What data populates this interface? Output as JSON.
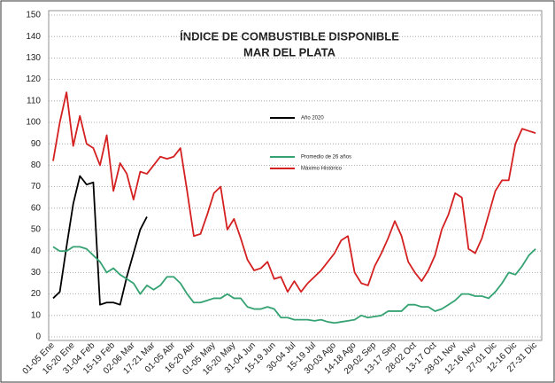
{
  "chart_data": {
    "type": "line",
    "title": "ÍNDICE DE COMBUSTIBLE DISPONIBLE",
    "subtitle": "MAR DEL PLATA",
    "categories": [
      "01-05 Ene",
      null,
      null,
      "16-20 Ene",
      null,
      null,
      "31-04 Feb",
      null,
      null,
      "15-19 Feb",
      null,
      null,
      "02-06 Mar",
      null,
      null,
      "17-21 Mar",
      null,
      null,
      "01-05 Abr",
      null,
      null,
      "16-20 Abr",
      null,
      null,
      "01-05 May",
      null,
      null,
      "16-20 May",
      null,
      null,
      "31-04 Jun",
      null,
      null,
      "15-19 Jun",
      null,
      null,
      "30-04 Jul",
      null,
      null,
      "15-19 Jul",
      null,
      null,
      "30-03 Ago",
      null,
      null,
      "14-18 Ago",
      null,
      null,
      "29-02 Sep",
      null,
      null,
      "13-17 Sep",
      null,
      null,
      "28-02 Oct",
      null,
      null,
      "13-17 Oct",
      null,
      null,
      "28-01 Nov",
      null,
      null,
      "12-16 Nov",
      null,
      null,
      "27-01 Dic",
      null,
      null,
      "12-16 Dic",
      null,
      null,
      "27-31 Dic"
    ],
    "series": [
      {
        "name": "Año 2020",
        "color": "#000000",
        "values": [
          18,
          21,
          42,
          62,
          75,
          71,
          72,
          15,
          16,
          16,
          15,
          28,
          39,
          50,
          56,
          null,
          null,
          null,
          null,
          null,
          null,
          null,
          null,
          null,
          null,
          null,
          null,
          null,
          null,
          null,
          null,
          null,
          null,
          null,
          null,
          null,
          null,
          null,
          null,
          null,
          null,
          null,
          null,
          null,
          null,
          null,
          null,
          null,
          null,
          null,
          null,
          null,
          null,
          null,
          null,
          null,
          null,
          null,
          null,
          null,
          null,
          null,
          null,
          null,
          null,
          null,
          null,
          null,
          null,
          null,
          null,
          null,
          null
        ]
      },
      {
        "name": "Promedio de 26 años",
        "color": "#35a272",
        "values": [
          42,
          40,
          40,
          42,
          42,
          41,
          38,
          35,
          30,
          32,
          29,
          27,
          25,
          20,
          24,
          22,
          24,
          28,
          28,
          25,
          20,
          16,
          16,
          17,
          18,
          18,
          20,
          18,
          18,
          14,
          13,
          13,
          14,
          13,
          9,
          9,
          8,
          8,
          8,
          7.5,
          8,
          7,
          6.5,
          7,
          7.5,
          8,
          10,
          9,
          9.5,
          10,
          12,
          12,
          12,
          15,
          15,
          14,
          14,
          12,
          13,
          15,
          17,
          20,
          20,
          19,
          19,
          18,
          21,
          25,
          30,
          29,
          33,
          38,
          41
        ]
      },
      {
        "name": "Máximo Histórico",
        "color": "#d42020",
        "values": [
          82,
          100,
          114,
          89,
          103,
          90,
          88,
          80,
          94,
          68,
          81,
          76,
          64,
          77,
          76,
          80,
          84,
          83,
          84,
          88,
          68,
          47,
          48,
          57,
          67,
          70,
          50,
          55,
          46,
          36,
          31,
          32,
          35,
          27,
          28,
          21,
          26,
          21,
          25,
          28,
          31,
          35,
          39,
          45,
          47,
          30,
          25,
          24,
          33,
          39,
          46,
          54,
          47,
          35,
          30,
          26,
          31,
          38,
          50,
          57,
          67,
          65,
          41,
          39,
          46,
          57,
          68,
          73,
          73,
          90,
          97,
          96,
          95
        ]
      }
    ],
    "ylim": [
      0,
      150
    ],
    "yticks": [
      0,
      10,
      20,
      30,
      40,
      50,
      60,
      70,
      80,
      90,
      100,
      110,
      120,
      130,
      140,
      150
    ],
    "grid": true
  }
}
